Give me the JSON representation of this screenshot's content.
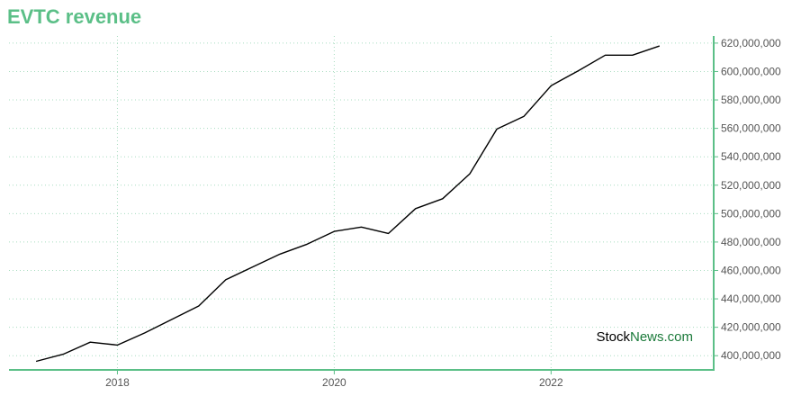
{
  "colors": {
    "accent": "#5bbf87",
    "grid": "#a8dcc0",
    "line": "#000000",
    "watermark_news": "#1b7a3a"
  },
  "chart_data": {
    "type": "line",
    "title": "EVTC revenue",
    "xlabel": "",
    "ylabel": "",
    "grid": true,
    "xlim": [
      2017.0,
      2023.5
    ],
    "ylim": [
      390000000,
      625000000
    ],
    "x_ticks": [
      {
        "value": 2018,
        "label": "2018"
      },
      {
        "value": 2020,
        "label": "2020"
      },
      {
        "value": 2022,
        "label": "2022"
      }
    ],
    "y_ticks": [
      {
        "value": 400000000,
        "label": "400,000,000"
      },
      {
        "value": 420000000,
        "label": "420,000,000"
      },
      {
        "value": 440000000,
        "label": "440,000,000"
      },
      {
        "value": 460000000,
        "label": "460,000,000"
      },
      {
        "value": 480000000,
        "label": "480,000,000"
      },
      {
        "value": 500000000,
        "label": "500,000,000"
      },
      {
        "value": 520000000,
        "label": "520,000,000"
      },
      {
        "value": 540000000,
        "label": "540,000,000"
      },
      {
        "value": 560000000,
        "label": "560,000,000"
      },
      {
        "value": 580000000,
        "label": "580,000,000"
      },
      {
        "value": 600000000,
        "label": "600,000,000"
      },
      {
        "value": 620000000,
        "label": "620,000,000"
      }
    ],
    "series": [
      {
        "x": [
          2017.25,
          2017.5,
          2017.75,
          2018.0,
          2018.25,
          2018.5,
          2018.75,
          2019.0,
          2019.25,
          2019.5,
          2019.75,
          2020.0,
          2020.25,
          2020.5,
          2020.75,
          2021.0,
          2021.25,
          2021.5,
          2021.75,
          2022.0,
          2022.25,
          2022.5,
          2022.75,
          2023.0
        ],
        "values": [
          396000000,
          401000000,
          409500000,
          407500000,
          416000000,
          425500000,
          435000000,
          453500000,
          462500000,
          471500000,
          478500000,
          487500000,
          490500000,
          486000000,
          503500000,
          510500000,
          528000000,
          559500000,
          568500000,
          590000000,
          600500000,
          611500000,
          611500000,
          618000000
        ]
      }
    ]
  },
  "watermark": {
    "part1": "Stock",
    "part2": "News.com"
  }
}
